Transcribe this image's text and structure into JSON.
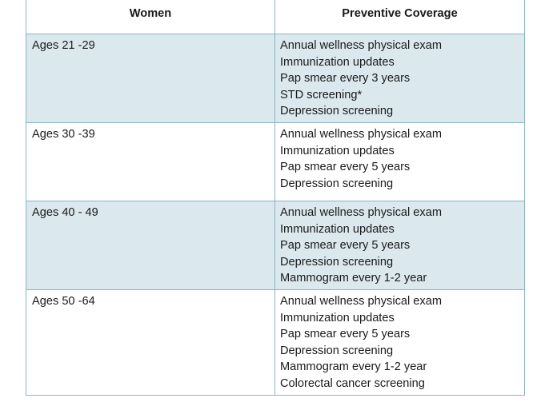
{
  "table": {
    "headers": {
      "group": "Women",
      "coverage": "Preventive Coverage"
    },
    "rows": [
      {
        "age": "Ages 21 -29",
        "services": [
          "Annual wellness physical exam",
          "Immunization updates",
          "Pap smear every 3 years",
          "STD screening*",
          "Depression screening"
        ]
      },
      {
        "age": "Ages 30 -39",
        "services": [
          "Annual wellness physical exam",
          "Immunization updates",
          "Pap smear every 5 years",
          "Depression screening"
        ]
      },
      {
        "age": "Ages 40 - 49",
        "services": [
          "Annual wellness physical exam",
          "Immunization updates",
          "Pap smear every 5 years",
          "Depression screening",
          "Mammogram every 1-2 year"
        ]
      },
      {
        "age": "Ages 50 -64",
        "services": [
          "Annual wellness physical exam",
          "Immunization updates",
          "Pap smear every 5 years",
          "Depression screening",
          "Mammogram every 1-2 year",
          "Colorectal cancer screening"
        ]
      }
    ]
  },
  "colors": {
    "border": "#8cb4c6",
    "shaded_row": "#dbe8ee",
    "plain_row": "#ffffff"
  }
}
